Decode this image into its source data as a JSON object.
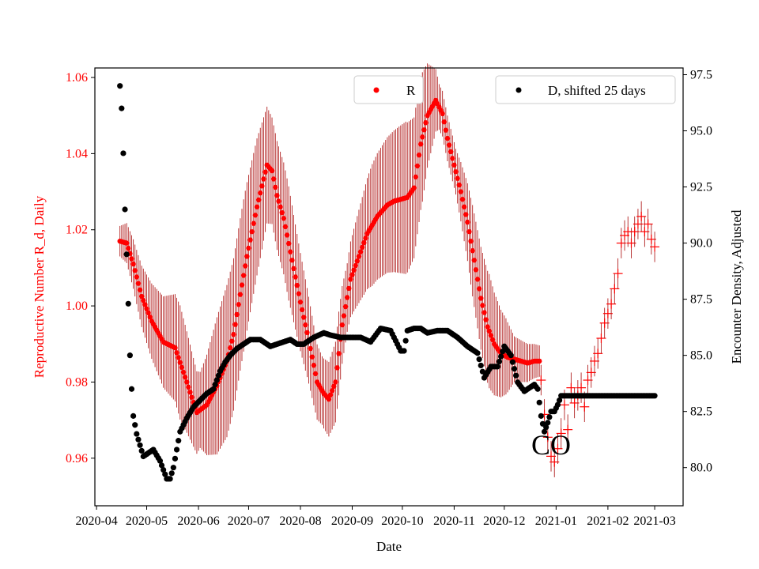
{
  "chart_data": {
    "type": "scatter",
    "xlabel": "Date",
    "ylabel_left": "Reproductive Number R_d, Daily",
    "ylabel_right": "Encounter Density, Adjusted",
    "ylim_left": [
      0.9475,
      1.0625
    ],
    "ylim_right": [
      78.3,
      97.8
    ],
    "left_ticks": [
      "0.96",
      "0.98",
      "1.00",
      "1.02",
      "1.04",
      "1.06"
    ],
    "right_ticks": [
      "80.0",
      "82.5",
      "85.0",
      "87.5",
      "90.0",
      "92.5",
      "95.0",
      "97.5"
    ],
    "x_ticks": [
      "2020-04",
      "2020-05",
      "2020-06",
      "2020-07",
      "2020-08",
      "2020-09",
      "2020-10",
      "2020-11",
      "2020-12",
      "2021-01",
      "2021-02",
      "2021-03"
    ],
    "x_tick_days": [
      0,
      30,
      61,
      91,
      122,
      153,
      183,
      214,
      244,
      275,
      306,
      334
    ],
    "x_range_days": [
      -1,
      351
    ],
    "annotation": "CO",
    "annotation_day": 272,
    "annotation_value": 0.9635,
    "colors": {
      "R": "#ff0000",
      "error_bar": "#b22222",
      "D": "#000000",
      "forecast": "#ff0000"
    },
    "legend_R": "R",
    "legend_D": "D, shifted 25 days",
    "series_R_estimate": {
      "name": "R",
      "knots_x": [
        14,
        18,
        22,
        27,
        33,
        40,
        47,
        54,
        60,
        66,
        72,
        78,
        82,
        86,
        90,
        96,
        102,
        105,
        108,
        112,
        117,
        122,
        127,
        132,
        136,
        139,
        143,
        147,
        152,
        157,
        162,
        168,
        174,
        178,
        182,
        186,
        190,
        194,
        198,
        203,
        207,
        210,
        214,
        218,
        222,
        226,
        230,
        234,
        238,
        242,
        246,
        250,
        254,
        258,
        262,
        265
      ],
      "knots_y": [
        1.017,
        1.0165,
        1.011,
        1.0025,
        0.996,
        0.9905,
        0.989,
        0.98,
        0.972,
        0.974,
        0.979,
        0.9855,
        0.9925,
        1.003,
        1.013,
        1.026,
        1.037,
        1.0355,
        1.029,
        1.023,
        1.012,
        1.001,
        0.991,
        0.98,
        0.977,
        0.9755,
        0.98,
        0.995,
        1.007,
        1.013,
        1.019,
        1.0235,
        1.0265,
        1.0275,
        1.028,
        1.0285,
        1.031,
        1.0425,
        1.05,
        1.054,
        1.0505,
        1.044,
        1.037,
        1.03,
        1.022,
        1.012,
        1.002,
        0.9945,
        0.99,
        0.9875,
        0.9865,
        0.986,
        0.9855,
        0.985,
        0.9855,
        0.9855
      ],
      "err_knots_x": [
        14,
        30,
        50,
        62,
        72,
        78,
        88,
        96,
        105,
        115,
        125,
        135,
        145,
        150,
        165,
        175,
        185,
        195,
        205,
        215,
        225,
        235,
        245,
        250,
        266
      ],
      "err_knots_y": [
        0.004,
        0.009,
        0.015,
        0.01,
        0.018,
        0.02,
        0.02,
        0.018,
        0.014,
        0.015,
        0.012,
        0.009,
        0.011,
        0.009,
        0.016,
        0.018,
        0.02,
        0.017,
        0.006,
        0.006,
        0.012,
        0.015,
        0.01,
        0.006,
        0.004
      ],
      "day_range": [
        14,
        265
      ]
    },
    "series_R_forecast": {
      "name": "R forecast",
      "days": [
        266,
        268,
        270,
        272,
        274,
        276,
        278,
        280,
        282,
        284,
        286,
        288,
        290,
        292,
        294,
        296,
        298,
        300,
        302,
        304,
        306,
        308,
        310,
        312,
        314,
        316,
        318,
        320,
        322,
        324,
        326,
        328,
        330,
        332,
        334
      ],
      "values": [
        0.9805,
        0.9715,
        0.9655,
        0.9605,
        0.959,
        0.9625,
        0.9665,
        0.974,
        0.9675,
        0.9785,
        0.9745,
        0.9765,
        0.9785,
        0.9735,
        0.9805,
        0.9825,
        0.9855,
        0.9875,
        0.9915,
        0.9955,
        0.998,
        1.0005,
        1.0045,
        1.0085,
        1.0165,
        1.0185,
        1.0195,
        1.0165,
        1.0195,
        1.0215,
        1.0235,
        1.0195,
        1.0215,
        1.0175,
        1.0155
      ]
    },
    "series_D": {
      "name": "D, shifted 25 days",
      "knots_x": [
        14,
        15,
        16,
        17,
        18,
        19,
        20,
        21,
        22,
        24,
        26,
        28,
        30,
        34,
        38,
        42,
        44,
        46,
        50,
        54,
        58,
        62,
        66,
        70,
        74,
        77,
        80,
        84,
        88,
        92,
        98,
        104,
        108,
        112,
        116,
        120,
        124,
        130,
        136,
        140,
        146,
        152,
        158,
        164,
        170,
        176,
        182,
        184,
        186,
        190,
        194,
        198,
        204,
        210,
        216,
        222,
        228,
        232,
        236,
        240,
        244,
        248,
        252,
        256,
        260,
        262,
        264,
        266,
        268,
        270,
        272,
        274,
        276,
        278,
        280,
        290,
        300,
        310,
        320,
        334
      ],
      "knots_y": [
        97.0,
        96.0,
        94.0,
        91.5,
        89.5,
        87.3,
        85.0,
        83.5,
        82.3,
        81.5,
        81.0,
        80.5,
        80.6,
        80.8,
        80.3,
        79.5,
        79.5,
        80.0,
        81.6,
        82.2,
        82.7,
        83.0,
        83.3,
        83.5,
        84.3,
        84.7,
        85.0,
        85.3,
        85.5,
        85.7,
        85.7,
        85.4,
        85.5,
        85.6,
        85.7,
        85.5,
        85.5,
        85.8,
        86.0,
        85.9,
        85.8,
        85.8,
        85.8,
        85.6,
        86.2,
        86.1,
        85.2,
        85.2,
        86.1,
        86.2,
        86.2,
        86.0,
        86.1,
        86.1,
        85.8,
        85.4,
        85.1,
        84.0,
        84.5,
        84.5,
        85.4,
        85.0,
        83.8,
        83.4,
        83.6,
        83.7,
        83.5,
        82.3,
        81.6,
        82.0,
        82.5,
        82.5,
        82.8,
        83.2,
        83.2,
        83.2,
        83.2,
        83.2,
        83.2,
        83.2
      ],
      "day_range": [
        14,
        334
      ]
    }
  }
}
